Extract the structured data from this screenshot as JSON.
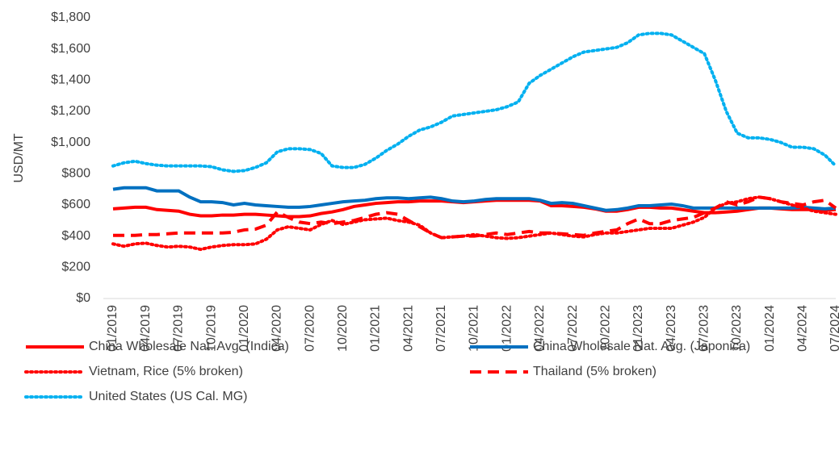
{
  "chart_data": {
    "type": "line",
    "y_label": "USD/MT",
    "categories": [
      "01/2019",
      null,
      null,
      "04/2019",
      null,
      null,
      "07/2019",
      null,
      null,
      "10/2019",
      null,
      null,
      "01/2020",
      null,
      null,
      "04/2020",
      null,
      null,
      "07/2020",
      null,
      null,
      "10/2020",
      null,
      null,
      "01/2021",
      null,
      null,
      "04/2021",
      null,
      null,
      "07/2021",
      null,
      null,
      "10/2021",
      null,
      null,
      "01/2022",
      null,
      null,
      "04/2022",
      null,
      null,
      "07/2022",
      null,
      null,
      "10/2022",
      null,
      null,
      "01/2023",
      null,
      null,
      "04/2023",
      null,
      null,
      "07/2023",
      null,
      null,
      "10/2023",
      null,
      null,
      "01/2024",
      null,
      null,
      "04/2024",
      null,
      null,
      "07/2024"
    ],
    "ylim": [
      0,
      1800
    ],
    "yticks": [
      {
        "value": 0,
        "label": "$0"
      },
      {
        "value": 200,
        "label": "$200"
      },
      {
        "value": 400,
        "label": "$400"
      },
      {
        "value": 600,
        "label": "$600"
      },
      {
        "value": 800,
        "label": "$800"
      },
      {
        "value": 1000,
        "label": "$1,000"
      },
      {
        "value": 1200,
        "label": "$1,200"
      },
      {
        "value": 1400,
        "label": "$1,400"
      },
      {
        "value": 1600,
        "label": "$1,600"
      },
      {
        "value": 1800,
        "label": "$1,800"
      }
    ],
    "series": [
      {
        "name": "China Wholesale Nat. Avg. (Indica)",
        "color": "#ff0000",
        "style": "solid",
        "values": [
          575,
          580,
          585,
          585,
          570,
          565,
          560,
          540,
          530,
          530,
          535,
          535,
          540,
          540,
          535,
          530,
          525,
          525,
          530,
          545,
          555,
          570,
          590,
          600,
          610,
          615,
          620,
          620,
          625,
          625,
          625,
          620,
          615,
          620,
          625,
          630,
          630,
          630,
          630,
          625,
          595,
          595,
          590,
          585,
          575,
          560,
          560,
          570,
          585,
          585,
          580,
          580,
          570,
          560,
          550,
          550,
          555,
          560,
          570,
          580,
          580,
          575,
          570,
          570,
          570,
          565,
          570
        ]
      },
      {
        "name": "China Wholesale Nat. Avg. (Japonica)",
        "color": "#0070c0",
        "style": "solid",
        "values": [
          700,
          710,
          710,
          710,
          690,
          690,
          690,
          650,
          620,
          620,
          615,
          600,
          610,
          600,
          595,
          590,
          585,
          585,
          590,
          600,
          610,
          620,
          625,
          630,
          640,
          645,
          645,
          640,
          645,
          650,
          640,
          625,
          620,
          625,
          635,
          640,
          640,
          640,
          640,
          630,
          610,
          615,
          610,
          595,
          580,
          565,
          570,
          580,
          595,
          595,
          600,
          605,
          595,
          580,
          580,
          580,
          580,
          580,
          580,
          580,
          580,
          580,
          580,
          585,
          580,
          575,
          580
        ]
      },
      {
        "name": "Vietnam, Rice (5% broken)",
        "color": "#ff0000",
        "style": "dotted",
        "values": [
          350,
          335,
          350,
          355,
          340,
          330,
          335,
          330,
          315,
          330,
          340,
          345,
          345,
          350,
          380,
          440,
          460,
          450,
          440,
          475,
          500,
          475,
          490,
          505,
          510,
          515,
          500,
          490,
          470,
          420,
          390,
          395,
          400,
          410,
          400,
          390,
          385,
          390,
          400,
          410,
          420,
          410,
          400,
          395,
          410,
          420,
          420,
          430,
          440,
          450,
          450,
          450,
          470,
          490,
          520,
          580,
          610,
          620,
          640,
          650,
          640,
          620,
          600,
          580,
          560,
          550,
          540
        ]
      },
      {
        "name": "Thailand (5% broken)",
        "color": "#ff0000",
        "style": "dashed",
        "values": [
          405,
          405,
          405,
          410,
          410,
          415,
          420,
          420,
          420,
          420,
          420,
          425,
          440,
          445,
          470,
          555,
          520,
          490,
          480,
          490,
          480,
          490,
          500,
          520,
          540,
          550,
          540,
          500,
          460,
          420,
          390,
          395,
          400,
          400,
          410,
          420,
          410,
          420,
          430,
          420,
          420,
          415,
          410,
          405,
          420,
          430,
          440,
          480,
          510,
          480,
          480,
          500,
          510,
          520,
          550,
          580,
          620,
          600,
          620,
          650,
          640,
          620,
          610,
          600,
          620,
          630,
          580
        ]
      },
      {
        "name": "United States (US Cal. MG)",
        "color": "#00b0f0",
        "style": "dotted",
        "values": [
          850,
          870,
          880,
          865,
          855,
          850,
          850,
          850,
          850,
          845,
          825,
          815,
          820,
          840,
          870,
          940,
          960,
          960,
          955,
          930,
          850,
          840,
          840,
          860,
          900,
          950,
          990,
          1040,
          1080,
          1100,
          1130,
          1170,
          1180,
          1190,
          1200,
          1210,
          1230,
          1260,
          1380,
          1430,
          1470,
          1510,
          1550,
          1580,
          1590,
          1600,
          1610,
          1640,
          1690,
          1700,
          1700,
          1690,
          1650,
          1610,
          1570,
          1400,
          1200,
          1060,
          1030,
          1030,
          1020,
          1000,
          970,
          970,
          960,
          920,
          850
        ]
      }
    ]
  }
}
